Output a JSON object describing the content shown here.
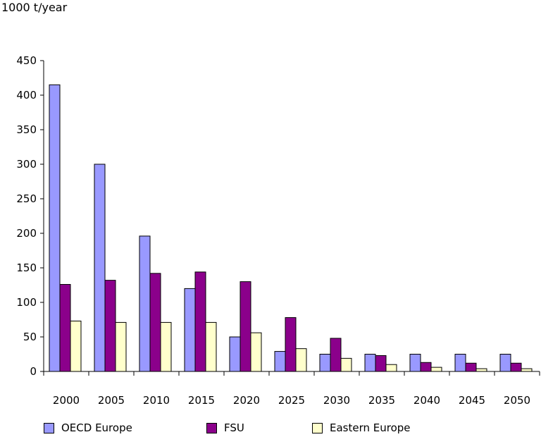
{
  "chart_data": {
    "type": "bar",
    "ylabel": "1000 t/year",
    "ylim": [
      0,
      450
    ],
    "yticks": [
      0,
      50,
      100,
      150,
      200,
      250,
      300,
      350,
      400,
      450
    ],
    "categories": [
      "2000",
      "2005",
      "2010",
      "2015",
      "2020",
      "2025",
      "2030",
      "2035",
      "2040",
      "2045",
      "2050"
    ],
    "series": [
      {
        "name": "OECD Europe",
        "color": "#9999ff",
        "values": [
          415,
          300,
          196,
          120,
          50,
          29,
          25,
          25,
          25,
          25,
          25
        ]
      },
      {
        "name": "FSU",
        "color": "#8b008b",
        "values": [
          126,
          132,
          142,
          144,
          130,
          78,
          48,
          23,
          13,
          12,
          12
        ]
      },
      {
        "name": "Eastern Europe",
        "color": "#ffffcc",
        "values": [
          73,
          71,
          71,
          71,
          56,
          33,
          19,
          10,
          6,
          4,
          4
        ]
      }
    ],
    "legend": "bottom",
    "grid": false
  }
}
